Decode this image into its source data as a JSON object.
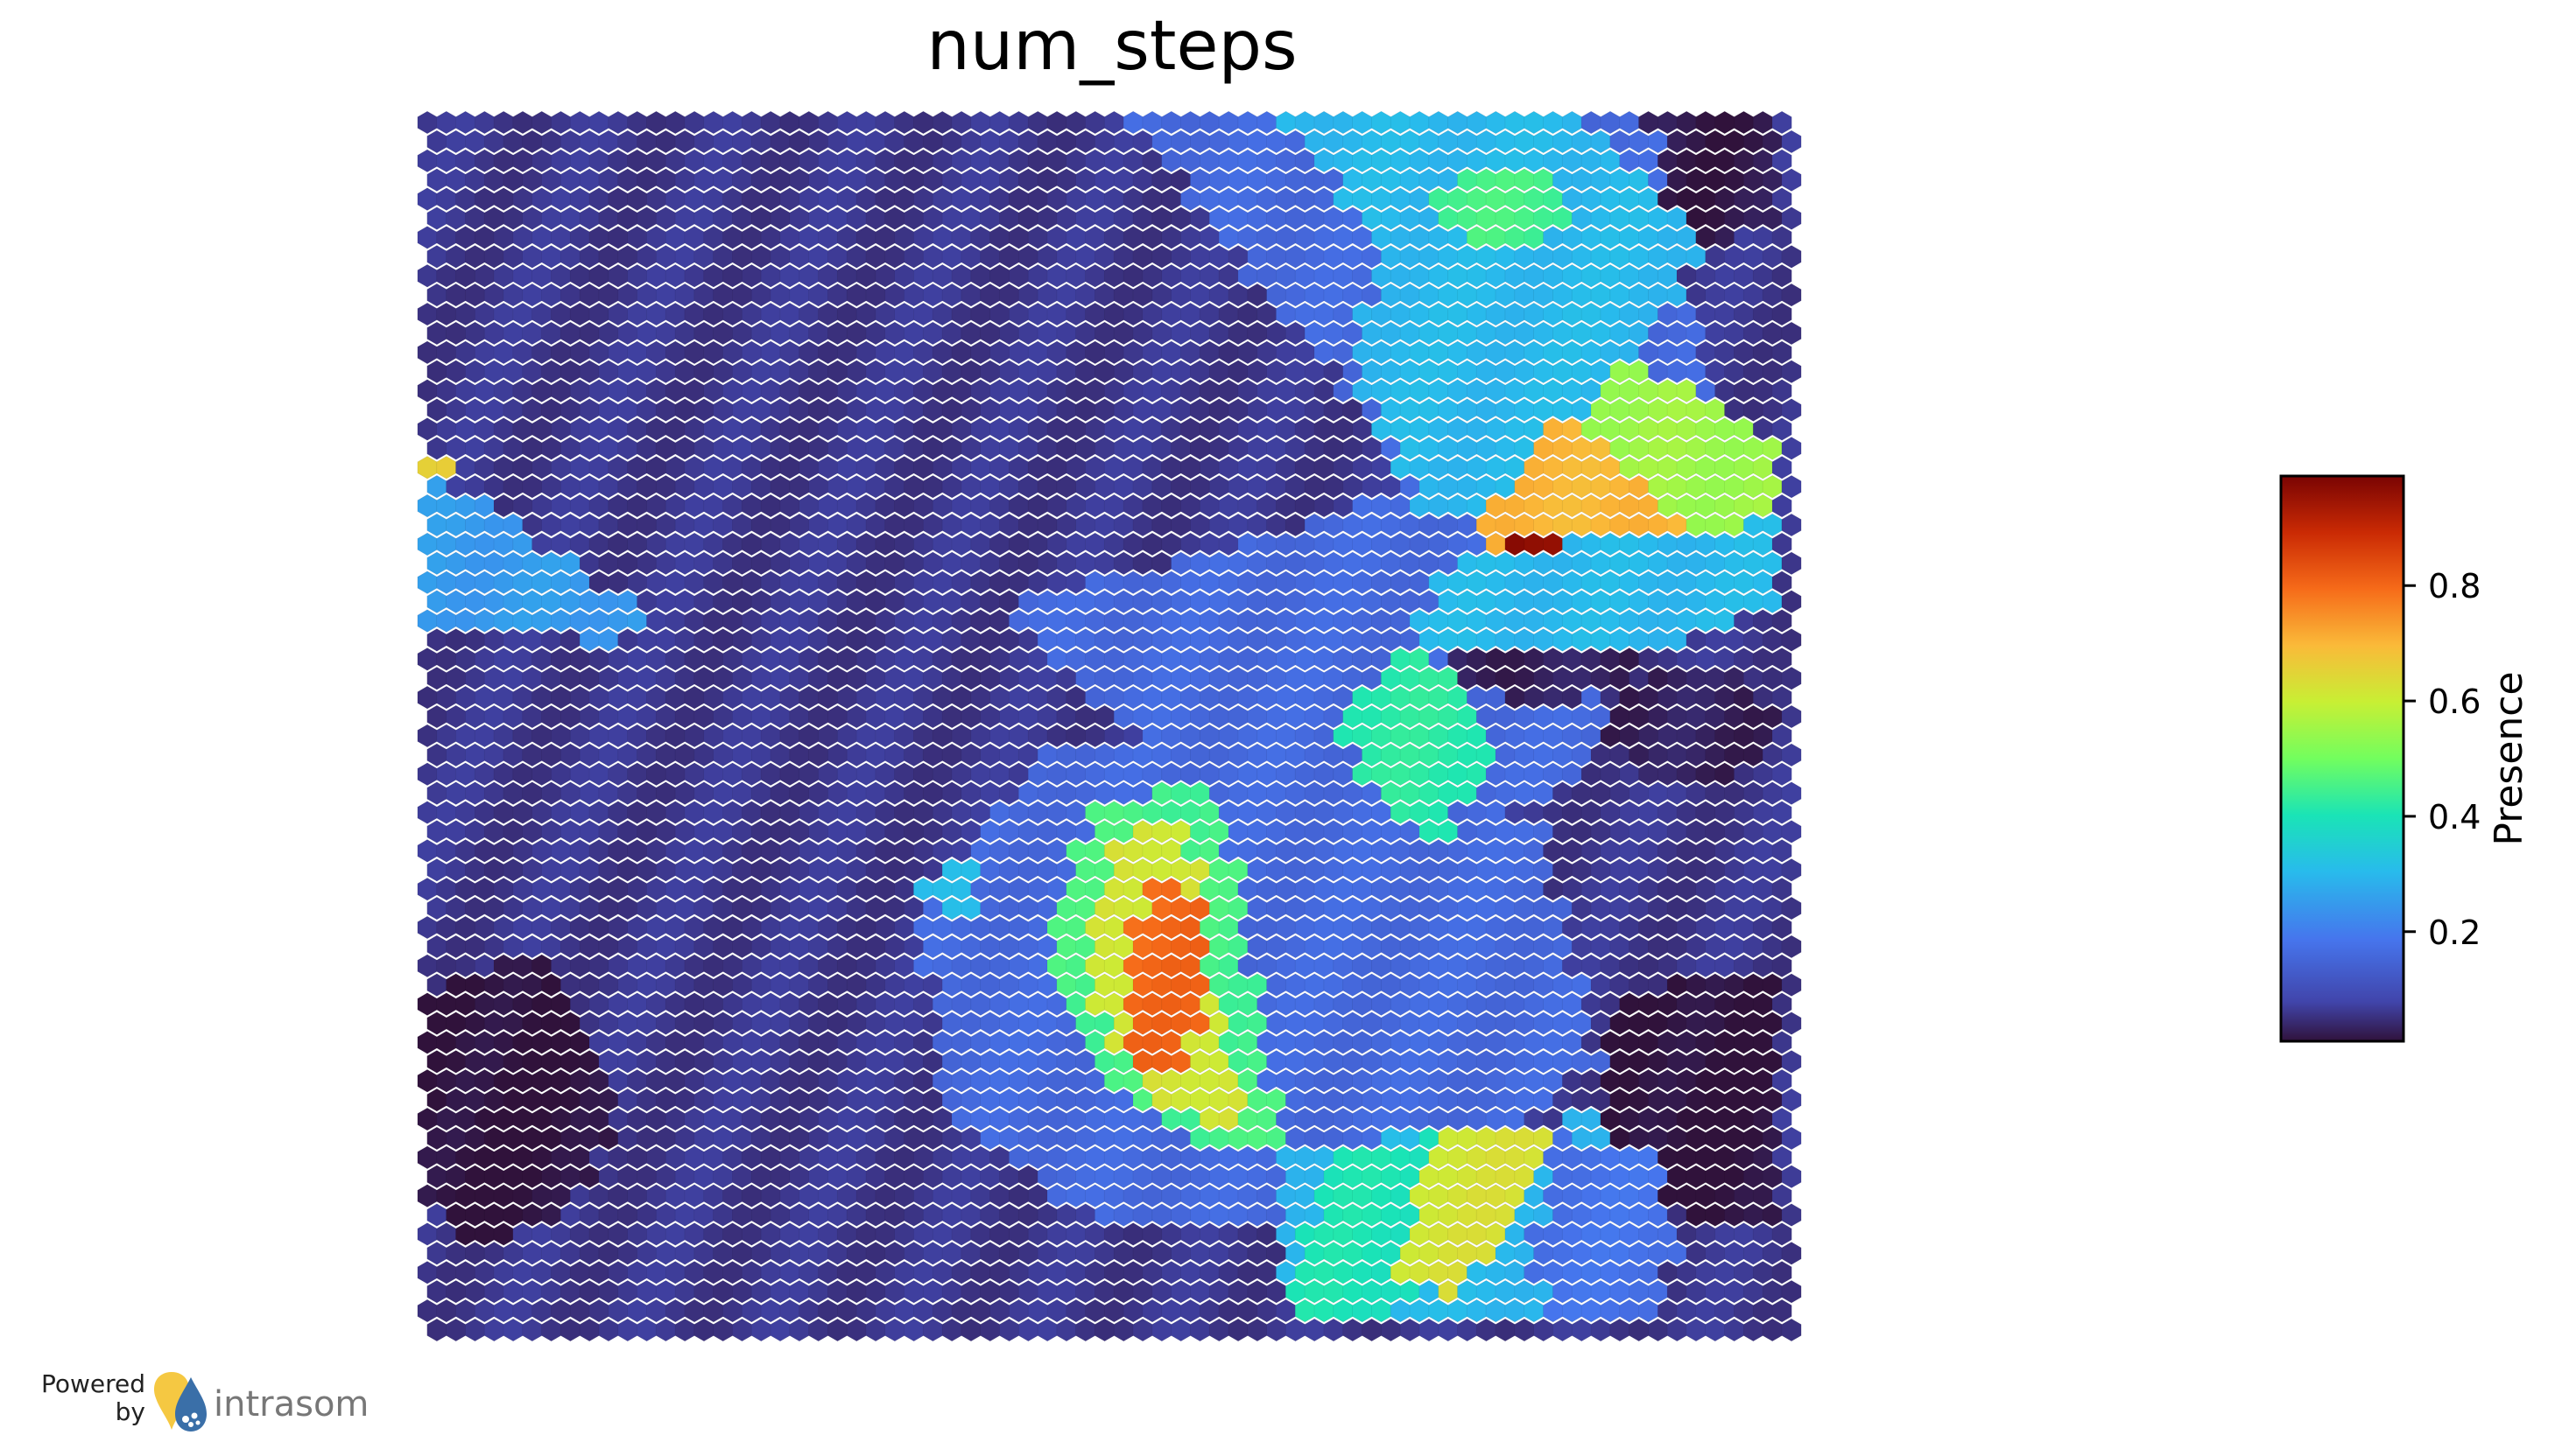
{
  "chart_data": {
    "type": "heatmap",
    "title": "num_steps",
    "grid": "hexagonal",
    "colormap": "jet",
    "colorbar": {
      "label": "Presence",
      "range": [
        0.01,
        0.99
      ],
      "ticks": [
        {
          "value": 0.2,
          "label": "0.2"
        },
        {
          "value": 0.4,
          "label": "0.4"
        },
        {
          "value": 0.6,
          "label": "0.6"
        },
        {
          "value": 0.8,
          "label": "0.8"
        }
      ]
    },
    "regions": [
      {
        "id": "background",
        "value": 0.06
      },
      {
        "id": "top-center-band",
        "value": 0.16
      },
      {
        "id": "top-right-cyan-wedge",
        "value": 0.3
      },
      {
        "id": "top-right-green-patch",
        "value": 0.45
      },
      {
        "id": "top-right-dark-corner",
        "value": 0.02
      },
      {
        "id": "upper-right-lime-blob",
        "value": 0.55
      },
      {
        "id": "upper-right-orange-triangle",
        "value": 0.7
      },
      {
        "id": "dark-red-streak",
        "value": 0.97
      },
      {
        "id": "mid-right-cyan-band",
        "value": 0.3
      },
      {
        "id": "left-cyan-wedge",
        "value": 0.25
      },
      {
        "id": "left-yellow-dot",
        "value": 0.65
      },
      {
        "id": "mid-green-diamond",
        "value": 0.42
      },
      {
        "id": "center-light-blue",
        "value": 0.16
      },
      {
        "id": "center-orange-core",
        "value": 0.8
      },
      {
        "id": "center-yellow-ring",
        "value": 0.62
      },
      {
        "id": "center-green-ring",
        "value": 0.45
      },
      {
        "id": "small-cyan-dot",
        "value": 0.3
      },
      {
        "id": "bottom-left-dark",
        "value": 0.01
      },
      {
        "id": "bottom-right-dark",
        "value": 0.01
      },
      {
        "id": "right-mid-dark",
        "value": 0.03
      },
      {
        "id": "bottom-green-band",
        "value": 0.4
      },
      {
        "id": "bottom-yellow-band",
        "value": 0.62
      },
      {
        "id": "bottom-cyan-strip",
        "value": 0.3
      },
      {
        "id": "bottom-right-blue",
        "value": 0.18
      }
    ]
  },
  "footer": {
    "powered_line1": "Powered",
    "powered_line2": "by",
    "brand": "intrasom"
  }
}
